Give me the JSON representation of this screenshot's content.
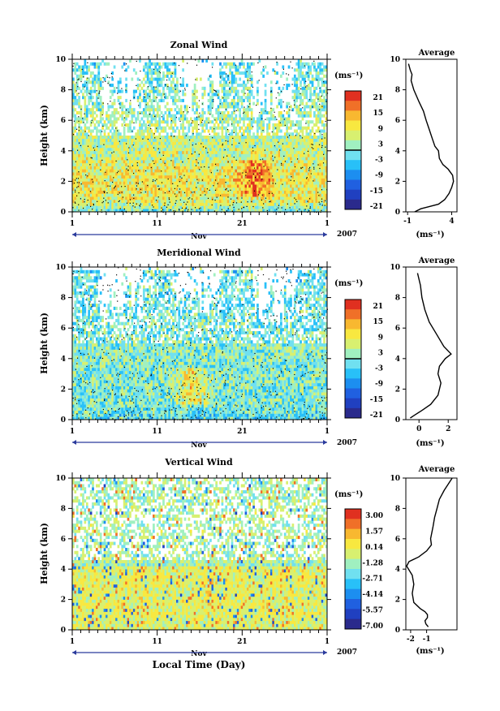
{
  "figure": {
    "bottom_xlabel": "Local Time (Day)",
    "month_label": "Nov",
    "year_label": "2007",
    "x_ticks": [
      "1",
      "11",
      "21",
      "1"
    ]
  },
  "colors": {
    "cmap": [
      "#2a2a8c",
      "#2040c0",
      "#2060e0",
      "#1c8ef0",
      "#28c0f8",
      "#70e0f0",
      "#a0f0c0",
      "#d8f070",
      "#f8e840",
      "#f8b830",
      "#f07028",
      "#e03020"
    ],
    "line": "#000000",
    "axis_arrow": "#2a3a9c"
  },
  "chart_data": [
    {
      "type": "heatmap",
      "title": "Zonal Wind",
      "ylabel": "Height (km)",
      "ylim": [
        0,
        10
      ],
      "y_ticks": [
        "0",
        "2",
        "4",
        "6",
        "8",
        "10"
      ],
      "x_ticks": [
        "1",
        "11",
        "21",
        "1"
      ],
      "colorbar": {
        "unit": "(ms⁻¹)",
        "labels": [
          "21",
          "15",
          "9",
          "3",
          "-3",
          "-9",
          "-15",
          "-21"
        ],
        "range": [
          -24,
          24
        ]
      },
      "field": {
        "mean_profile_scale": 1.0,
        "bias": 0.5,
        "warm_spot_day": 22.5
      }
    },
    {
      "type": "heatmap",
      "title": "Meridional Wind",
      "ylabel": "Height (km)",
      "ylim": [
        0,
        10
      ],
      "y_ticks": [
        "0",
        "2",
        "4",
        "6",
        "8",
        "10"
      ],
      "x_ticks": [
        "1",
        "11",
        "21",
        "1"
      ],
      "colorbar": {
        "unit": "(ms⁻¹)",
        "labels": [
          "21",
          "15",
          "9",
          "3",
          "-3",
          "-9",
          "-15",
          "-21"
        ],
        "range": [
          -24,
          24
        ]
      },
      "field": {
        "mean_profile_scale": 0.6,
        "bias": -1.5,
        "warm_spot_day": 15
      }
    },
    {
      "type": "heatmap",
      "title": "Vertical Wind",
      "ylabel": "Height (km)",
      "ylim": [
        0,
        10
      ],
      "y_ticks": [
        "0",
        "2",
        "4",
        "6",
        "8",
        "10"
      ],
      "x_ticks": [
        "1",
        "11",
        "21",
        "1"
      ],
      "colorbar": {
        "unit": "(ms⁻¹)",
        "labels": [
          "3.00",
          "1.57",
          "0.14",
          "-1.28",
          "-2.71",
          "-4.14",
          "-5.57",
          "-7.00"
        ],
        "range": [
          -7.7,
          3.7
        ]
      },
      "field": {
        "mean_profile_scale": 1.0,
        "bias": 0.2,
        "warm_spot_day": 0
      }
    }
  ],
  "averages": [
    {
      "type": "line",
      "title": "Average",
      "xlabel": "(ms⁻¹)",
      "xlim": [
        -1.2,
        4.6
      ],
      "ylim": [
        0,
        10
      ],
      "x_ticks": [
        "-1",
        "4"
      ],
      "x_tick_values": [
        -1,
        4
      ],
      "y_ticks": [
        "0",
        "2",
        "4",
        "6",
        "8",
        "10"
      ],
      "profile": [
        [
          -0.2,
          0
        ],
        [
          0.5,
          0.2
        ],
        [
          2.5,
          0.5
        ],
        [
          3.2,
          0.8
        ],
        [
          3.7,
          1.2
        ],
        [
          4.0,
          1.6
        ],
        [
          4.2,
          2.0
        ],
        [
          4.1,
          2.4
        ],
        [
          3.6,
          2.8
        ],
        [
          3.0,
          3.1
        ],
        [
          2.6,
          3.5
        ],
        [
          2.5,
          4.0
        ],
        [
          2.1,
          4.3
        ],
        [
          1.8,
          4.8
        ],
        [
          1.4,
          5.5
        ],
        [
          1.1,
          6.0
        ],
        [
          0.8,
          6.6
        ],
        [
          0.3,
          7.2
        ],
        [
          -0.3,
          8.0
        ],
        [
          -0.6,
          8.6
        ],
        [
          -0.5,
          9.0
        ],
        [
          -0.7,
          9.3
        ],
        [
          -0.9,
          9.7
        ]
      ]
    },
    {
      "type": "line",
      "title": "Average",
      "xlabel": "(ms⁻¹)",
      "xlim": [
        -0.9,
        2.6
      ],
      "ylim": [
        0,
        10
      ],
      "x_ticks": [
        "0",
        "2"
      ],
      "x_tick_values": [
        0,
        2
      ],
      "y_ticks": [
        "0",
        "2",
        "4",
        "6",
        "8",
        "10"
      ],
      "profile": [
        [
          -0.6,
          0.1
        ],
        [
          -0.3,
          0.3
        ],
        [
          0.2,
          0.6
        ],
        [
          0.8,
          1.0
        ],
        [
          1.3,
          1.6
        ],
        [
          1.5,
          2.4
        ],
        [
          1.3,
          3.0
        ],
        [
          1.4,
          3.5
        ],
        [
          1.8,
          4.0
        ],
        [
          2.2,
          4.3
        ],
        [
          1.7,
          4.8
        ],
        [
          1.2,
          5.6
        ],
        [
          0.7,
          6.4
        ],
        [
          0.4,
          7.2
        ],
        [
          0.2,
          8.0
        ],
        [
          0.1,
          8.8
        ],
        [
          -0.1,
          9.6
        ]
      ]
    },
    {
      "type": "line",
      "title": "Average",
      "xlabel": "(ms⁻¹)",
      "xlim": [
        -2.3,
        0.9
      ],
      "ylim": [
        0,
        10
      ],
      "x_ticks": [
        "-2",
        "-1"
      ],
      "x_tick_values": [
        -2,
        -1
      ],
      "y_ticks": [
        "0",
        "2",
        "4",
        "6",
        "8",
        "10"
      ],
      "profile": [
        [
          -0.9,
          0.2
        ],
        [
          -1.05,
          0.4
        ],
        [
          -1.1,
          0.6
        ],
        [
          -0.95,
          0.8
        ],
        [
          -0.95,
          1.0
        ],
        [
          -1.1,
          1.2
        ],
        [
          -1.4,
          1.4
        ],
        [
          -1.8,
          1.8
        ],
        [
          -1.9,
          2.4
        ],
        [
          -1.8,
          3.0
        ],
        [
          -1.9,
          3.6
        ],
        [
          -2.25,
          4.2
        ],
        [
          -2.1,
          4.5
        ],
        [
          -1.5,
          4.8
        ],
        [
          -1.0,
          5.2
        ],
        [
          -0.7,
          5.6
        ],
        [
          -0.75,
          6.0
        ],
        [
          -0.6,
          6.8
        ],
        [
          -0.5,
          7.4
        ],
        [
          -0.35,
          8.0
        ],
        [
          -0.2,
          8.6
        ],
        [
          0.1,
          9.2
        ],
        [
          0.35,
          9.6
        ],
        [
          0.6,
          10.0
        ]
      ]
    }
  ]
}
